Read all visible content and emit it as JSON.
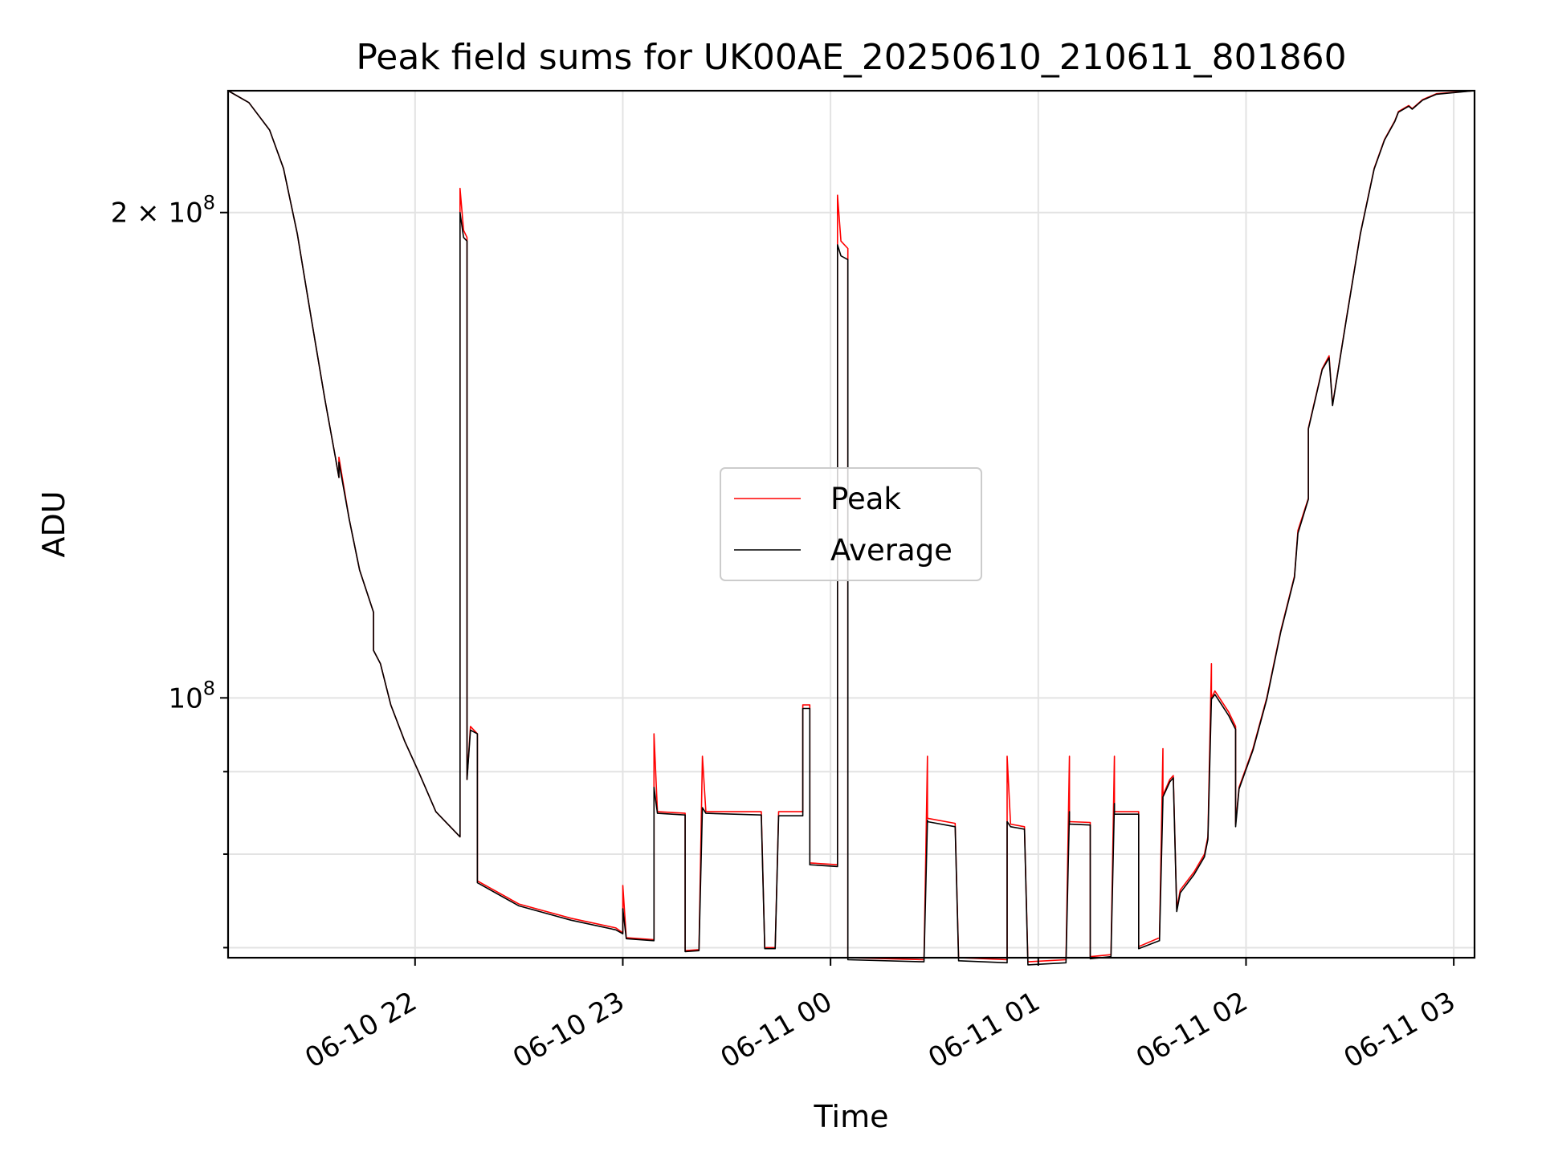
{
  "chart_data": {
    "type": "line",
    "title": "Peak field sums for UK00AE_20250610_210611_801860",
    "xlabel": "Time",
    "ylabel": "ADU",
    "y_scale": "log",
    "xlim": [
      "2025-06-10 21:06",
      "2025-06-11 03:06"
    ],
    "ylim": [
      69000000,
      238000000
    ],
    "x_ticks": [
      {
        "value": "2025-06-10 22:00",
        "label": "06-10 22"
      },
      {
        "value": "2025-06-10 23:00",
        "label": "06-10 23"
      },
      {
        "value": "2025-06-11 00:00",
        "label": "06-11 00"
      },
      {
        "value": "2025-06-11 01:00",
        "label": "06-11 01"
      },
      {
        "value": "2025-06-11 02:00",
        "label": "06-11 02"
      },
      {
        "value": "2025-06-11 03:00",
        "label": "06-11 03"
      }
    ],
    "y_ticks_major": [
      {
        "value": 100000000,
        "base": "10",
        "exp": "8"
      },
      {
        "value": 200000000,
        "base": "2 × 10",
        "exp": "8"
      }
    ],
    "y_ticks_minor": [
      70000000,
      80000000,
      90000000
    ],
    "grid": true,
    "legend_position": "center",
    "series": [
      {
        "name": "Peak",
        "color": "#ff0000",
        "points": [
          [
            "2025-06-10 21:06",
            238000000
          ],
          [
            "2025-06-10 21:12",
            234000000
          ],
          [
            "2025-06-10 21:18",
            225000000
          ],
          [
            "2025-06-10 21:22",
            213000000
          ],
          [
            "2025-06-10 21:26",
            194000000
          ],
          [
            "2025-06-10 21:30",
            172000000
          ],
          [
            "2025-06-10 21:34",
            153000000
          ],
          [
            "2025-06-10 21:37",
            141000000
          ],
          [
            "2025-06-10 21:38",
            137000000
          ],
          [
            "2025-06-10 21:38",
            141000000
          ],
          [
            "2025-06-10 21:41",
            129000000
          ],
          [
            "2025-06-10 21:44",
            120000000
          ],
          [
            "2025-06-10 21:48",
            113000000
          ],
          [
            "2025-06-10 21:48",
            107000000
          ],
          [
            "2025-06-10 21:50",
            105000000
          ],
          [
            "2025-06-10 21:53",
            99000000
          ],
          [
            "2025-06-10 21:57",
            94000000
          ],
          [
            "2025-06-10 22:01",
            90000000
          ],
          [
            "2025-06-10 22:06",
            85000000
          ],
          [
            "2025-06-10 22:13",
            82000000
          ],
          [
            "2025-06-10 22:13",
            207000000
          ],
          [
            "2025-06-10 22:14",
            195000000
          ],
          [
            "2025-06-10 22:15",
            193000000
          ],
          [
            "2025-06-10 22:15",
            89000000
          ],
          [
            "2025-06-10 22:16",
            96000000
          ],
          [
            "2025-06-10 22:18",
            95000000
          ],
          [
            "2025-06-10 22:18",
            77000000
          ],
          [
            "2025-06-10 22:30",
            74500000
          ],
          [
            "2025-06-10 22:45",
            73000000
          ],
          [
            "2025-06-10 22:58",
            72000000
          ],
          [
            "2025-06-10 23:00",
            71500000
          ],
          [
            "2025-06-10 23:00",
            76500000
          ],
          [
            "2025-06-10 23:01",
            71000000
          ],
          [
            "2025-06-10 23:09",
            70800000
          ],
          [
            "2025-06-10 23:09",
            95000000
          ],
          [
            "2025-06-10 23:10",
            85000000
          ],
          [
            "2025-06-10 23:18",
            84800000
          ],
          [
            "2025-06-10 23:18",
            69700000
          ],
          [
            "2025-06-10 23:22",
            69800000
          ],
          [
            "2025-06-10 23:23",
            92000000
          ],
          [
            "2025-06-10 23:24",
            85000000
          ],
          [
            "2025-06-10 23:40",
            85000000
          ],
          [
            "2025-06-10 23:41",
            70000000
          ],
          [
            "2025-06-10 23:44",
            70000000
          ],
          [
            "2025-06-10 23:45",
            85000000
          ],
          [
            "2025-06-10 23:52",
            85000000
          ],
          [
            "2025-06-10 23:52",
            99000000
          ],
          [
            "2025-06-10 23:54",
            99000000
          ],
          [
            "2025-06-10 23:54",
            79000000
          ],
          [
            "2025-06-11 00:02",
            78800000
          ],
          [
            "2025-06-11 00:02",
            205000000
          ],
          [
            "2025-06-11 00:03",
            192000000
          ],
          [
            "2025-06-11 00:05",
            190000000
          ],
          [
            "2025-06-11 00:05",
            69000000
          ],
          [
            "2025-06-11 00:27",
            68800000
          ],
          [
            "2025-06-11 00:28",
            92000000
          ],
          [
            "2025-06-11 00:28",
            84200000
          ],
          [
            "2025-06-11 00:36",
            83600000
          ],
          [
            "2025-06-11 00:37",
            69000000
          ],
          [
            "2025-06-11 00:51",
            68800000
          ],
          [
            "2025-06-11 00:51",
            92000000
          ],
          [
            "2025-06-11 00:52",
            83500000
          ],
          [
            "2025-06-11 00:56",
            83200000
          ],
          [
            "2025-06-11 00:57",
            68600000
          ],
          [
            "2025-06-11 01:08",
            68800000
          ],
          [
            "2025-06-11 01:09",
            92000000
          ],
          [
            "2025-06-11 01:09",
            83800000
          ],
          [
            "2025-06-11 01:15",
            83700000
          ],
          [
            "2025-06-11 01:15",
            69100000
          ],
          [
            "2025-06-11 01:21",
            69300000
          ],
          [
            "2025-06-11 01:22",
            92000000
          ],
          [
            "2025-06-11 01:22",
            85000000
          ],
          [
            "2025-06-11 01:29",
            85000000
          ],
          [
            "2025-06-11 01:29",
            70100000
          ],
          [
            "2025-06-11 01:35",
            71000000
          ],
          [
            "2025-06-11 01:36",
            93000000
          ],
          [
            "2025-06-11 01:36",
            87000000
          ],
          [
            "2025-06-11 01:38",
            89000000
          ],
          [
            "2025-06-11 01:39",
            89500000
          ],
          [
            "2025-06-11 01:40",
            74000000
          ],
          [
            "2025-06-11 01:41",
            76000000
          ],
          [
            "2025-06-11 01:45",
            78000000
          ],
          [
            "2025-06-11 01:48",
            80000000
          ],
          [
            "2025-06-11 01:49",
            82000000
          ],
          [
            "2025-06-11 01:50",
            105000000
          ],
          [
            "2025-06-11 01:50",
            100000000
          ],
          [
            "2025-06-11 01:51",
            101000000
          ],
          [
            "2025-06-11 01:55",
            98000000
          ],
          [
            "2025-06-11 01:57",
            96000000
          ],
          [
            "2025-06-11 01:57",
            83500000
          ],
          [
            "2025-06-11 01:58",
            88000000
          ],
          [
            "2025-06-11 02:02",
            93000000
          ],
          [
            "2025-06-11 02:06",
            100000000
          ],
          [
            "2025-06-11 02:10",
            110000000
          ],
          [
            "2025-06-11 02:14",
            119000000
          ],
          [
            "2025-06-11 02:15",
            127000000
          ],
          [
            "2025-06-11 02:18",
            133000000
          ],
          [
            "2025-06-11 02:18",
            147000000
          ],
          [
            "2025-06-11 02:22",
            160000000
          ],
          [
            "2025-06-11 02:24",
            163000000
          ],
          [
            "2025-06-11 02:25",
            152000000
          ],
          [
            "2025-06-11 02:29",
            172000000
          ],
          [
            "2025-06-11 02:33",
            194000000
          ],
          [
            "2025-06-11 02:37",
            213000000
          ],
          [
            "2025-06-11 02:40",
            222000000
          ],
          [
            "2025-06-11 02:43",
            228000000
          ],
          [
            "2025-06-11 02:44",
            231000000
          ],
          [
            "2025-06-11 02:47",
            233000000
          ],
          [
            "2025-06-11 02:48",
            232000000
          ],
          [
            "2025-06-11 02:51",
            235000000
          ],
          [
            "2025-06-11 02:55",
            237000000
          ],
          [
            "2025-06-11 03:06",
            238000000
          ]
        ]
      },
      {
        "name": "Average",
        "color": "#000000",
        "points": [
          [
            "2025-06-10 21:06",
            238000000
          ],
          [
            "2025-06-10 21:12",
            234000000
          ],
          [
            "2025-06-10 21:18",
            225000000
          ],
          [
            "2025-06-10 21:22",
            213000000
          ],
          [
            "2025-06-10 21:26",
            194000000
          ],
          [
            "2025-06-10 21:30",
            172000000
          ],
          [
            "2025-06-10 21:34",
            153000000
          ],
          [
            "2025-06-10 21:37",
            141000000
          ],
          [
            "2025-06-10 21:38",
            137000000
          ],
          [
            "2025-06-10 21:38",
            140000000
          ],
          [
            "2025-06-10 21:41",
            129000000
          ],
          [
            "2025-06-10 21:44",
            120000000
          ],
          [
            "2025-06-10 21:48",
            113000000
          ],
          [
            "2025-06-10 21:48",
            107000000
          ],
          [
            "2025-06-10 21:50",
            105000000
          ],
          [
            "2025-06-10 21:53",
            99000000
          ],
          [
            "2025-06-10 21:57",
            94000000
          ],
          [
            "2025-06-10 22:01",
            90000000
          ],
          [
            "2025-06-10 22:06",
            85000000
          ],
          [
            "2025-06-10 22:13",
            82000000
          ],
          [
            "2025-06-10 22:13",
            200000000
          ],
          [
            "2025-06-10 22:14",
            193000000
          ],
          [
            "2025-06-10 22:15",
            192000000
          ],
          [
            "2025-06-10 22:15",
            89000000
          ],
          [
            "2025-06-10 22:16",
            95500000
          ],
          [
            "2025-06-10 22:18",
            95000000
          ],
          [
            "2025-06-10 22:18",
            76800000
          ],
          [
            "2025-06-10 22:30",
            74300000
          ],
          [
            "2025-06-10 22:45",
            72800000
          ],
          [
            "2025-06-10 22:58",
            71800000
          ],
          [
            "2025-06-10 23:00",
            71400000
          ],
          [
            "2025-06-10 23:00",
            74000000
          ],
          [
            "2025-06-10 23:01",
            70900000
          ],
          [
            "2025-06-10 23:09",
            70700000
          ],
          [
            "2025-06-10 23:09",
            88000000
          ],
          [
            "2025-06-10 23:10",
            84800000
          ],
          [
            "2025-06-10 23:18",
            84600000
          ],
          [
            "2025-06-10 23:18",
            69600000
          ],
          [
            "2025-06-10 23:22",
            69700000
          ],
          [
            "2025-06-10 23:23",
            85500000
          ],
          [
            "2025-06-10 23:24",
            84800000
          ],
          [
            "2025-06-10 23:40",
            84600000
          ],
          [
            "2025-06-10 23:41",
            69900000
          ],
          [
            "2025-06-10 23:44",
            69900000
          ],
          [
            "2025-06-10 23:45",
            84500000
          ],
          [
            "2025-06-10 23:52",
            84500000
          ],
          [
            "2025-06-10 23:52",
            98500000
          ],
          [
            "2025-06-10 23:54",
            98500000
          ],
          [
            "2025-06-10 23:54",
            78800000
          ],
          [
            "2025-06-11 00:02",
            78600000
          ],
          [
            "2025-06-11 00:02",
            191000000
          ],
          [
            "2025-06-11 00:03",
            188000000
          ],
          [
            "2025-06-11 00:05",
            187000000
          ],
          [
            "2025-06-11 00:05",
            68800000
          ],
          [
            "2025-06-11 00:27",
            68600000
          ],
          [
            "2025-06-11 00:28",
            84000000
          ],
          [
            "2025-06-11 00:28",
            83800000
          ],
          [
            "2025-06-11 00:36",
            83200000
          ],
          [
            "2025-06-11 00:37",
            68700000
          ],
          [
            "2025-06-11 00:51",
            68500000
          ],
          [
            "2025-06-11 00:51",
            83800000
          ],
          [
            "2025-06-11 00:52",
            83200000
          ],
          [
            "2025-06-11 00:56",
            82900000
          ],
          [
            "2025-06-11 00:57",
            68300000
          ],
          [
            "2025-06-11 01:08",
            68500000
          ],
          [
            "2025-06-11 01:09",
            85000000
          ],
          [
            "2025-06-11 01:09",
            83500000
          ],
          [
            "2025-06-11 01:15",
            83400000
          ],
          [
            "2025-06-11 01:15",
            68900000
          ],
          [
            "2025-06-11 01:21",
            69100000
          ],
          [
            "2025-06-11 01:22",
            86000000
          ],
          [
            "2025-06-11 01:22",
            84700000
          ],
          [
            "2025-06-11 01:29",
            84700000
          ],
          [
            "2025-06-11 01:29",
            69900000
          ],
          [
            "2025-06-11 01:35",
            70700000
          ],
          [
            "2025-06-11 01:36",
            86500000
          ],
          [
            "2025-06-11 01:36",
            86800000
          ],
          [
            "2025-06-11 01:38",
            88700000
          ],
          [
            "2025-06-11 01:39",
            89200000
          ],
          [
            "2025-06-11 01:40",
            73700000
          ],
          [
            "2025-06-11 01:41",
            75700000
          ],
          [
            "2025-06-11 01:45",
            77700000
          ],
          [
            "2025-06-11 01:48",
            79700000
          ],
          [
            "2025-06-11 01:49",
            81700000
          ],
          [
            "2025-06-11 01:50",
            100000000
          ],
          [
            "2025-06-11 01:50",
            99800000
          ],
          [
            "2025-06-11 01:51",
            100500000
          ],
          [
            "2025-06-11 01:55",
            97500000
          ],
          [
            "2025-06-11 01:57",
            95600000
          ],
          [
            "2025-06-11 01:57",
            83200000
          ],
          [
            "2025-06-11 01:58",
            87800000
          ],
          [
            "2025-06-11 02:02",
            92800000
          ],
          [
            "2025-06-11 02:06",
            99800000
          ],
          [
            "2025-06-11 02:10",
            109800000
          ],
          [
            "2025-06-11 02:14",
            118800000
          ],
          [
            "2025-06-11 02:15",
            126500000
          ],
          [
            "2025-06-11 02:18",
            132800000
          ],
          [
            "2025-06-11 02:18",
            146800000
          ],
          [
            "2025-06-11 02:22",
            159800000
          ],
          [
            "2025-06-11 02:24",
            162500000
          ],
          [
            "2025-06-11 02:25",
            151800000
          ],
          [
            "2025-06-11 02:29",
            171800000
          ],
          [
            "2025-06-11 02:33",
            193800000
          ],
          [
            "2025-06-11 02:37",
            212800000
          ],
          [
            "2025-06-11 02:40",
            221800000
          ],
          [
            "2025-06-11 02:43",
            227800000
          ],
          [
            "2025-06-11 02:44",
            230800000
          ],
          [
            "2025-06-11 02:47",
            232800000
          ],
          [
            "2025-06-11 02:48",
            231800000
          ],
          [
            "2025-06-11 02:51",
            234800000
          ],
          [
            "2025-06-11 02:55",
            236800000
          ],
          [
            "2025-06-11 03:06",
            238000000
          ]
        ]
      }
    ]
  }
}
